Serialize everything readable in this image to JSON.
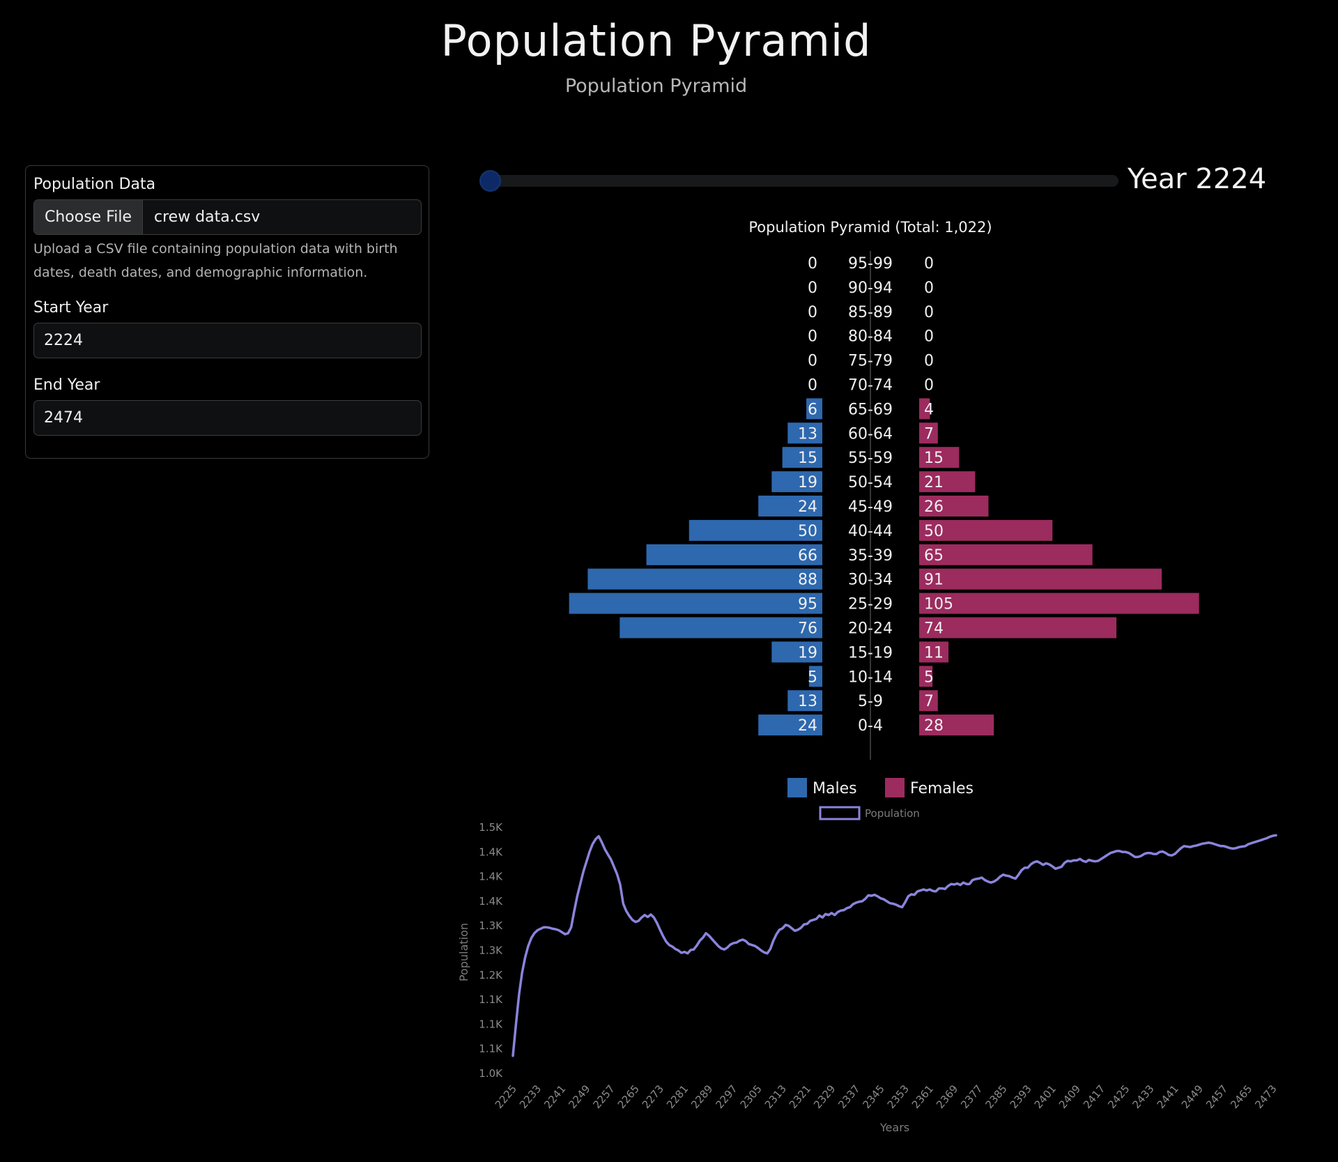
{
  "header": {
    "title": "Population Pyramid",
    "subtitle": "Population Pyramid"
  },
  "form": {
    "file_label": "Population Data",
    "file_button": "Choose File",
    "file_name": "crew data.csv",
    "help_text": "Upload a CSV file containing population data with birth dates, death dates, and demographic information.",
    "start_label": "Start Year",
    "start_value": "2224",
    "end_label": "End Year",
    "end_value": "2474"
  },
  "slider": {
    "label": "Year 2224",
    "min": 2224,
    "max": 2474,
    "value": 2224
  },
  "colors": {
    "male": "#2e68ae",
    "female": "#9c2b5e",
    "line": "#8a84dc",
    "background": "#000000"
  },
  "chart_data": [
    {
      "type": "bar",
      "title": "Population Pyramid (Total: 1,022)",
      "categories": [
        "95-99",
        "90-94",
        "85-89",
        "80-84",
        "75-79",
        "70-74",
        "65-69",
        "60-64",
        "55-59",
        "50-54",
        "45-49",
        "40-44",
        "35-39",
        "30-34",
        "25-29",
        "20-24",
        "15-19",
        "10-14",
        "5-9",
        "0-4"
      ],
      "series": [
        {
          "name": "Males",
          "values": [
            0,
            0,
            0,
            0,
            0,
            0,
            6,
            13,
            15,
            19,
            24,
            50,
            66,
            88,
            95,
            76,
            19,
            5,
            13,
            24
          ]
        },
        {
          "name": "Females",
          "values": [
            0,
            0,
            0,
            0,
            0,
            0,
            4,
            7,
            15,
            21,
            26,
            50,
            65,
            91,
            105,
            74,
            11,
            5,
            7,
            28
          ]
        }
      ],
      "legend": "bottom"
    },
    {
      "type": "line",
      "series": [
        {
          "name": "Population"
        }
      ],
      "xlabel": "Years",
      "ylabel": "Population",
      "ylim": [
        1000,
        1500
      ],
      "yticks": [
        "1.0K",
        "1.1K",
        "1.1K",
        "1.1K",
        "1.2K",
        "1.3K",
        "1.3K",
        "1.4K",
        "1.4K",
        "1.4K",
        "1.5K"
      ],
      "xticks": [
        "2225",
        "2233",
        "2241",
        "2249",
        "2257",
        "2265",
        "2273",
        "2281",
        "2289",
        "2297",
        "2305",
        "2313",
        "2321",
        "2329",
        "2337",
        "2345",
        "2353",
        "2361",
        "2369",
        "2377",
        "2385",
        "2393",
        "2401",
        "2409",
        "2417",
        "2425",
        "2433",
        "2441",
        "2449",
        "2457",
        "2465",
        "2473"
      ],
      "legend": "top",
      "points": [
        [
          2225,
          1036
        ],
        [
          2226,
          1100
        ],
        [
          2227,
          1160
        ],
        [
          2228,
          1205
        ],
        [
          2229,
          1236
        ],
        [
          2230,
          1259
        ],
        [
          2231,
          1275
        ],
        [
          2232,
          1285
        ],
        [
          2233,
          1291
        ],
        [
          2234,
          1294
        ],
        [
          2235,
          1297
        ],
        [
          2236,
          1297
        ],
        [
          2237,
          1296
        ],
        [
          2238,
          1294
        ],
        [
          2239,
          1293
        ],
        [
          2240,
          1291
        ],
        [
          2241,
          1287
        ],
        [
          2242,
          1283
        ],
        [
          2243,
          1285
        ],
        [
          2244,
          1297
        ],
        [
          2245,
          1330
        ],
        [
          2246,
          1360
        ],
        [
          2247,
          1385
        ],
        [
          2248,
          1410
        ],
        [
          2249,
          1430
        ],
        [
          2250,
          1450
        ],
        [
          2251,
          1466
        ],
        [
          2252,
          1476
        ],
        [
          2253,
          1482
        ],
        [
          2254,
          1470
        ],
        [
          2255,
          1456
        ],
        [
          2256,
          1445
        ],
        [
          2257,
          1435
        ],
        [
          2258,
          1420
        ],
        [
          2259,
          1405
        ],
        [
          2260,
          1384
        ],
        [
          2261,
          1345
        ],
        [
          2262,
          1330
        ],
        [
          2263,
          1320
        ],
        [
          2264,
          1312
        ],
        [
          2265,
          1308
        ],
        [
          2266,
          1310
        ],
        [
          2267,
          1317
        ],
        [
          2268,
          1322
        ],
        [
          2269,
          1318
        ],
        [
          2270,
          1323
        ],
        [
          2271,
          1317
        ],
        [
          2272,
          1306
        ],
        [
          2273,
          1292
        ],
        [
          2274,
          1279
        ],
        [
          2275,
          1268
        ],
        [
          2276,
          1261
        ],
        [
          2277,
          1258
        ],
        [
          2278,
          1253
        ],
        [
          2279,
          1250
        ],
        [
          2280,
          1245
        ],
        [
          2281,
          1247
        ],
        [
          2282,
          1244
        ],
        [
          2283,
          1251
        ],
        [
          2284,
          1252
        ],
        [
          2285,
          1260
        ],
        [
          2286,
          1270
        ],
        [
          2287,
          1276
        ],
        [
          2288,
          1285
        ],
        [
          2289,
          1280
        ],
        [
          2290,
          1273
        ],
        [
          2291,
          1266
        ],
        [
          2292,
          1259
        ],
        [
          2293,
          1254
        ],
        [
          2294,
          1252
        ],
        [
          2295,
          1256
        ],
        [
          2296,
          1262
        ],
        [
          2297,
          1265
        ],
        [
          2298,
          1266
        ],
        [
          2299,
          1270
        ],
        [
          2300,
          1272
        ],
        [
          2301,
          1269
        ],
        [
          2302,
          1263
        ],
        [
          2303,
          1261
        ],
        [
          2304,
          1259
        ],
        [
          2305,
          1255
        ],
        [
          2306,
          1250
        ],
        [
          2307,
          1246
        ],
        [
          2308,
          1244
        ],
        [
          2309,
          1253
        ],
        [
          2310,
          1270
        ],
        [
          2311,
          1283
        ],
        [
          2312,
          1292
        ],
        [
          2313,
          1295
        ],
        [
          2314,
          1302
        ],
        [
          2315,
          1300
        ],
        [
          2316,
          1295
        ],
        [
          2317,
          1290
        ],
        [
          2318,
          1292
        ],
        [
          2319,
          1296
        ],
        [
          2320,
          1303
        ],
        [
          2321,
          1304
        ],
        [
          2322,
          1310
        ],
        [
          2323,
          1312
        ],
        [
          2324,
          1314
        ],
        [
          2325,
          1321
        ],
        [
          2326,
          1317
        ],
        [
          2327,
          1324
        ],
        [
          2328,
          1322
        ],
        [
          2329,
          1326
        ],
        [
          2330,
          1322
        ],
        [
          2331,
          1328
        ],
        [
          2332,
          1331
        ],
        [
          2333,
          1332
        ],
        [
          2334,
          1336
        ],
        [
          2335,
          1338
        ],
        [
          2336,
          1344
        ],
        [
          2337,
          1347
        ],
        [
          2338,
          1349
        ],
        [
          2339,
          1350
        ],
        [
          2340,
          1355
        ],
        [
          2341,
          1362
        ],
        [
          2342,
          1361
        ],
        [
          2343,
          1363
        ],
        [
          2344,
          1360
        ],
        [
          2345,
          1356
        ],
        [
          2346,
          1354
        ],
        [
          2347,
          1350
        ],
        [
          2348,
          1346
        ],
        [
          2349,
          1345
        ],
        [
          2350,
          1343
        ],
        [
          2351,
          1340
        ],
        [
          2352,
          1338
        ],
        [
          2353,
          1348
        ],
        [
          2354,
          1360
        ],
        [
          2355,
          1364
        ],
        [
          2356,
          1363
        ],
        [
          2357,
          1370
        ],
        [
          2358,
          1372
        ],
        [
          2359,
          1374
        ],
        [
          2360,
          1372
        ],
        [
          2361,
          1374
        ],
        [
          2362,
          1371
        ],
        [
          2363,
          1370
        ],
        [
          2364,
          1376
        ],
        [
          2365,
          1376
        ],
        [
          2366,
          1375
        ],
        [
          2367,
          1381
        ],
        [
          2368,
          1385
        ],
        [
          2369,
          1384
        ],
        [
          2370,
          1386
        ],
        [
          2371,
          1383
        ],
        [
          2372,
          1388
        ],
        [
          2373,
          1385
        ],
        [
          2374,
          1385
        ],
        [
          2375,
          1393
        ],
        [
          2376,
          1395
        ],
        [
          2377,
          1396
        ],
        [
          2378,
          1398
        ],
        [
          2379,
          1393
        ],
        [
          2380,
          1390
        ],
        [
          2381,
          1388
        ],
        [
          2382,
          1390
        ],
        [
          2383,
          1394
        ],
        [
          2384,
          1400
        ],
        [
          2385,
          1404
        ],
        [
          2386,
          1402
        ],
        [
          2387,
          1401
        ],
        [
          2388,
          1398
        ],
        [
          2389,
          1396
        ],
        [
          2390,
          1404
        ],
        [
          2391,
          1413
        ],
        [
          2392,
          1418
        ],
        [
          2393,
          1418
        ],
        [
          2394,
          1425
        ],
        [
          2395,
          1429
        ],
        [
          2396,
          1431
        ],
        [
          2397,
          1428
        ],
        [
          2398,
          1424
        ],
        [
          2399,
          1427
        ],
        [
          2400,
          1425
        ],
        [
          2401,
          1421
        ],
        [
          2402,
          1416
        ],
        [
          2403,
          1418
        ],
        [
          2404,
          1420
        ],
        [
          2405,
          1428
        ],
        [
          2406,
          1432
        ],
        [
          2407,
          1431
        ],
        [
          2408,
          1433
        ],
        [
          2409,
          1433
        ],
        [
          2410,
          1436
        ],
        [
          2411,
          1432
        ],
        [
          2412,
          1430
        ],
        [
          2413,
          1434
        ],
        [
          2414,
          1432
        ],
        [
          2415,
          1431
        ],
        [
          2416,
          1432
        ],
        [
          2417,
          1436
        ],
        [
          2418,
          1440
        ],
        [
          2419,
          1444
        ],
        [
          2420,
          1448
        ],
        [
          2421,
          1450
        ],
        [
          2422,
          1452
        ],
        [
          2423,
          1452
        ],
        [
          2424,
          1450
        ],
        [
          2425,
          1450
        ],
        [
          2426,
          1448
        ],
        [
          2427,
          1444
        ],
        [
          2428,
          1440
        ],
        [
          2429,
          1440
        ],
        [
          2430,
          1442
        ],
        [
          2431,
          1446
        ],
        [
          2432,
          1448
        ],
        [
          2433,
          1448
        ],
        [
          2434,
          1446
        ],
        [
          2435,
          1446
        ],
        [
          2436,
          1450
        ],
        [
          2437,
          1451
        ],
        [
          2438,
          1448
        ],
        [
          2439,
          1444
        ],
        [
          2440,
          1443
        ],
        [
          2441,
          1446
        ],
        [
          2442,
          1452
        ],
        [
          2443,
          1458
        ],
        [
          2444,
          1462
        ],
        [
          2445,
          1461
        ],
        [
          2446,
          1460
        ],
        [
          2447,
          1462
        ],
        [
          2448,
          1463
        ],
        [
          2449,
          1465
        ],
        [
          2450,
          1467
        ],
        [
          2451,
          1468
        ],
        [
          2452,
          1469
        ],
        [
          2453,
          1468
        ],
        [
          2454,
          1466
        ],
        [
          2455,
          1464
        ],
        [
          2456,
          1462
        ],
        [
          2457,
          1462
        ],
        [
          2458,
          1460
        ],
        [
          2459,
          1458
        ],
        [
          2460,
          1457
        ],
        [
          2461,
          1458
        ],
        [
          2462,
          1460
        ],
        [
          2463,
          1461
        ],
        [
          2464,
          1462
        ],
        [
          2465,
          1466
        ],
        [
          2466,
          1468
        ],
        [
          2467,
          1470
        ],
        [
          2468,
          1472
        ],
        [
          2469,
          1474
        ],
        [
          2470,
          1476
        ],
        [
          2471,
          1478
        ],
        [
          2472,
          1481
        ],
        [
          2473,
          1483
        ],
        [
          2474,
          1484
        ]
      ]
    }
  ]
}
